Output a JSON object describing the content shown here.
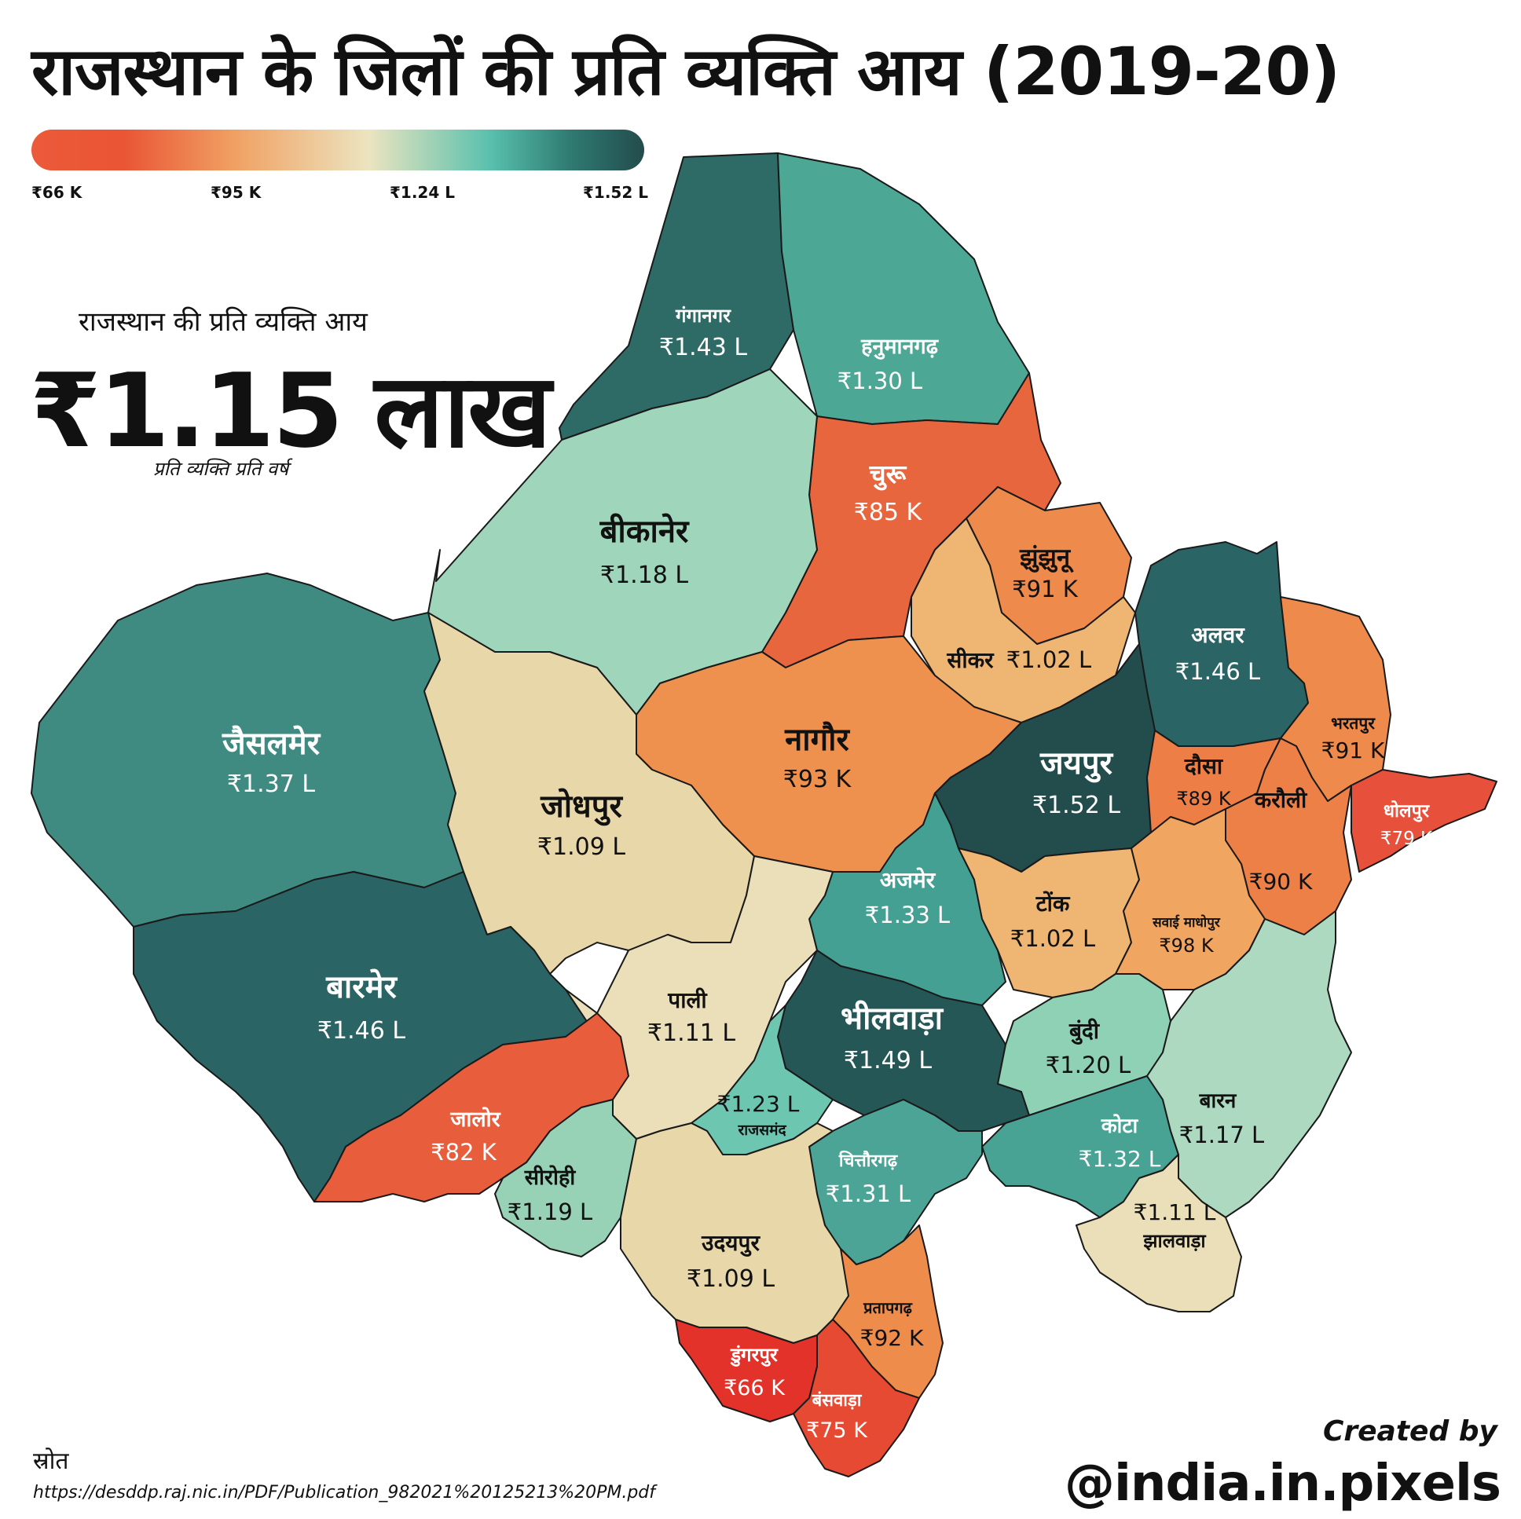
{
  "title": "राजस्थान के जिलों की प्रति व्यक्ति आय (2019-20)",
  "legend": {
    "ticks": [
      "₹66 K",
      "₹95 K",
      "₹1.24 L",
      "₹1.52 L"
    ],
    "colors": [
      "#eb5a3a",
      "#f0a062",
      "#ece4c0",
      "#58c0ad",
      "#234c4c"
    ]
  },
  "state_summary": {
    "label": "राजस्थान की प्रति व्यक्ति आय",
    "value": "₹1.15 लाख",
    "sub": "प्रति व्यक्ति प्रति वर्ष"
  },
  "districts": [
    {
      "name": "गंगानगर",
      "value": "₹1.43 L",
      "color": "#2f6b66"
    },
    {
      "name": "हनुमानगढ़",
      "value": "₹1.30 L",
      "color": "#4da795"
    },
    {
      "name": "चुरू",
      "value": "₹85 K",
      "color": "#e8663d"
    },
    {
      "name": "बीकानेर",
      "value": "₹1.18 L",
      "color": "#9ed5bb"
    },
    {
      "name": "झुंझुनू",
      "value": "₹91 K",
      "color": "#ee8a4b"
    },
    {
      "name": "सीकर",
      "value": "₹1.02 L",
      "color": "#eeb573"
    },
    {
      "name": "अलवर",
      "value": "₹1.46 L",
      "color": "#2b6464"
    },
    {
      "name": "भरतपुर",
      "value": "₹91 K",
      "color": "#ee8a4b"
    },
    {
      "name": "जैसलमेर",
      "value": "₹1.37 L",
      "color": "#3f8b82"
    },
    {
      "name": "नागौर",
      "value": "₹93 K",
      "color": "#ef914e"
    },
    {
      "name": "जयपुर",
      "value": "₹1.52 L",
      "color": "#234c4c"
    },
    {
      "name": "दौसा",
      "value": "₹89 K",
      "color": "#ec7e46"
    },
    {
      "name": "करौली",
      "value": "₹90 K",
      "color": "#ed8046"
    },
    {
      "name": "धोलपुर",
      "value": "₹79 K",
      "color": "#e7503a"
    },
    {
      "name": "जोधपुर",
      "value": "₹1.09 L",
      "color": "#e8d7a8"
    },
    {
      "name": "अजमेर",
      "value": "₹1.33 L",
      "color": "#45a094"
    },
    {
      "name": "टोंक",
      "value": "₹1.02 L",
      "color": "#eeb573"
    },
    {
      "name": "सवाई माधोपुर",
      "value": "₹98 K",
      "color": "#f0a560"
    },
    {
      "name": "बारमेर",
      "value": "₹1.46 L",
      "color": "#2b6464"
    },
    {
      "name": "पाली",
      "value": "₹1.11 L",
      "color": "#eadfb8"
    },
    {
      "name": "भीलवाड़ा",
      "value": "₹1.49 L",
      "color": "#265757"
    },
    {
      "name": "बुंदी",
      "value": "₹1.20 L",
      "color": "#8fd1b5"
    },
    {
      "name": "जालोर",
      "value": "₹82 K",
      "color": "#e85d3b"
    },
    {
      "name": "राजसमंद",
      "value": "₹1.23 L",
      "color": "#6cc6b0"
    },
    {
      "name": "कोटा",
      "value": "₹1.32 L",
      "color": "#48a394"
    },
    {
      "name": "बारन",
      "value": "₹1.17 L",
      "color": "#acd9bf"
    },
    {
      "name": "सीरोही",
      "value": "₹1.19 L",
      "color": "#97d2b7"
    },
    {
      "name": "चित्तौरगढ़",
      "value": "₹1.31 L",
      "color": "#4ba495"
    },
    {
      "name": "झालवाड़ा",
      "value": "₹1.11 L",
      "color": "#eadfb8"
    },
    {
      "name": "उदयपुर",
      "value": "₹1.09 L",
      "color": "#e8d7a8"
    },
    {
      "name": "प्रतापगढ़",
      "value": "₹92 K",
      "color": "#ee8c4c"
    },
    {
      "name": "डुंगरपुर",
      "value": "₹66 K",
      "color": "#e3322a"
    },
    {
      "name": "बंसवाड़ा",
      "value": "₹75 K",
      "color": "#e64a33"
    }
  ],
  "source": {
    "label": "स्रोत",
    "url": "https://desddp.raj.nic.in/PDF/Publication_982021%20125213%20PM.pdf"
  },
  "credit": {
    "created_by": "Created by",
    "handle": "@india.in.pixels"
  }
}
